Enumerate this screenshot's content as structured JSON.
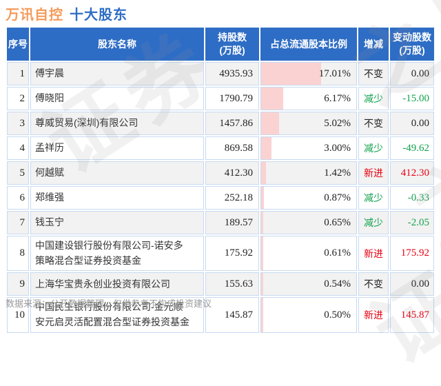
{
  "title": {
    "stock": "万讯自控",
    "label": "十大股东"
  },
  "chart_data": {
    "type": "table",
    "title": "万讯自控 十大股东",
    "headers": [
      "序号",
      "股东名称",
      "持股数\n(万股)",
      "占总流通股本比例",
      "增减",
      "变动股数\n(万股)"
    ],
    "pct_axis_note": "pink bar length proportional to percent, max 17.01%",
    "rows": [
      {
        "no": "1",
        "name": "傅宇晨",
        "shares": "4935.93",
        "pct": "17.01%",
        "pct_value": 17.01,
        "change": "不变",
        "change_type": "flat",
        "delta": "0.00"
      },
      {
        "no": "2",
        "name": "傅晓阳",
        "shares": "1790.79",
        "pct": "6.17%",
        "pct_value": 6.17,
        "change": "减少",
        "change_type": "down",
        "delta": "-15.00"
      },
      {
        "no": "3",
        "name": "尊威贸易(深圳)有限公司",
        "shares": "1457.86",
        "pct": "5.02%",
        "pct_value": 5.02,
        "change": "不变",
        "change_type": "flat",
        "delta": "0.00"
      },
      {
        "no": "4",
        "name": "孟祥历",
        "shares": "869.58",
        "pct": "3.00%",
        "pct_value": 3.0,
        "change": "减少",
        "change_type": "down",
        "delta": "-49.62"
      },
      {
        "no": "5",
        "name": "何越赋",
        "shares": "412.30",
        "pct": "1.42%",
        "pct_value": 1.42,
        "change": "新进",
        "change_type": "new",
        "delta": "412.30"
      },
      {
        "no": "6",
        "name": "郑维强",
        "shares": "252.18",
        "pct": "0.87%",
        "pct_value": 0.87,
        "change": "减少",
        "change_type": "down",
        "delta": "-0.33"
      },
      {
        "no": "7",
        "name": "钱玉宁",
        "shares": "189.57",
        "pct": "0.65%",
        "pct_value": 0.65,
        "change": "减少",
        "change_type": "down",
        "delta": "-2.05"
      },
      {
        "no": "8",
        "name": "中国建设银行股份有限公司-诺安多策略混合型证券投资基金",
        "shares": "175.92",
        "pct": "0.61%",
        "pct_value": 0.61,
        "change": "新进",
        "change_type": "new",
        "delta": "175.92"
      },
      {
        "no": "9",
        "name": "上海华宝贵永创业投资有限公司",
        "shares": "155.63",
        "pct": "0.54%",
        "pct_value": 0.54,
        "change": "不变",
        "change_type": "flat",
        "delta": "0.00"
      },
      {
        "no": "10",
        "name": "中国民生银行股份有限公司-金元顺安元启灵活配置混合型证券投资基金",
        "shares": "145.87",
        "pct": "0.50%",
        "pct_value": 0.5,
        "change": "新进",
        "change_type": "new",
        "delta": "145.87"
      }
    ]
  },
  "footer": {
    "source_note": "数据来源：公开数据整理，仅供参考不构成投资建议"
  },
  "watermark": {
    "text": "证券之星",
    "segments": [
      "之星",
      "证券",
      "证券",
      "之星"
    ]
  },
  "colors": {
    "header_bg": "#2e6dc5",
    "title_stock_orange": "#f59b5b",
    "title_label_blue": "#2e6dc5",
    "pct_bar_pink": "#fbd2d2",
    "new_red": "#e60012",
    "down_green": "#12a24e",
    "flat_black": "#222222",
    "row_alt_bg": "#f2f2f2",
    "cell_border": "#c6d9f1",
    "footer_gray": "#9a9a9a"
  }
}
